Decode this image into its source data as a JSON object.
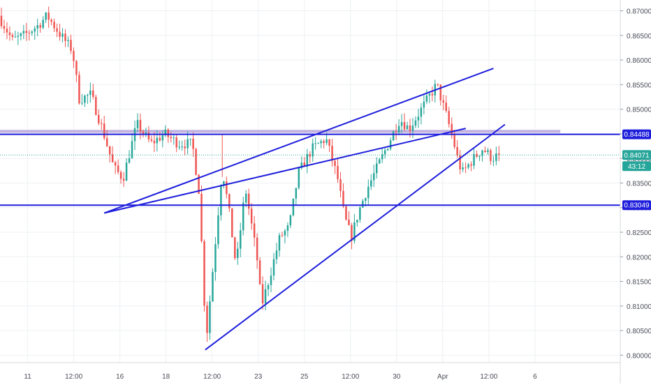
{
  "chart_data": {
    "type": "candlestick",
    "instrument_hint": "",
    "price_axis_ticks": [
      "0.80000",
      "0.80500",
      "0.81000",
      "0.81500",
      "0.82000",
      "0.82500",
      "0.83000",
      "0.83500",
      "0.84000",
      "0.84500",
      "0.85000",
      "0.85500",
      "0.86000",
      "0.86500",
      "0.87000"
    ],
    "ylim": [
      0.7985,
      0.8722
    ],
    "time_axis_ticks": [
      {
        "label": "11",
        "t": 0.6
      },
      {
        "label": "12:00",
        "t": 1.6
      },
      {
        "label": "16",
        "t": 2.6
      },
      {
        "label": "18",
        "t": 3.6
      },
      {
        "label": "12:00",
        "t": 4.6
      },
      {
        "label": "23",
        "t": 5.6
      },
      {
        "label": "25",
        "t": 6.6
      },
      {
        "label": "12:00",
        "t": 7.6
      },
      {
        "label": "30",
        "t": 8.6
      },
      {
        "label": "Apr",
        "t": 9.6
      },
      {
        "label": "12:00",
        "t": 10.6
      },
      {
        "label": "6",
        "t": 11.6
      }
    ],
    "xlim": [
      0,
      13.45
    ],
    "price_badges": {
      "upper_level": "0.84488",
      "current_price": "0.84071",
      "countdown": "43:12",
      "lower_level": "0.83049"
    },
    "horizontal_levels": [
      {
        "name": "upper_level",
        "value": 0.8449,
        "color": "#1e1edc"
      },
      {
        "name": "lower_level",
        "value": 0.8305,
        "color": "#1e1edc"
      },
      {
        "name": "current_price",
        "value": 0.8407,
        "color": "#26a69a",
        "style": "dotted"
      }
    ],
    "zone": {
      "from": 0.8452,
      "to": 0.8458,
      "color": "#b9a6dc"
    },
    "trendlines": [
      {
        "name": "lower-channel-line",
        "points": [
          [
            2.26,
            0.8289
          ],
          [
            10.1,
            0.8461
          ]
        ]
      },
      {
        "name": "upper-channel-line",
        "points": [
          [
            2.26,
            0.8289
          ],
          [
            10.7,
            0.8583
          ]
        ]
      },
      {
        "name": "rising-support-line",
        "points": [
          [
            4.45,
            0.8011
          ],
          [
            10.95,
            0.8469
          ]
        ]
      }
    ],
    "anchor_prices": [
      [
        0.0,
        0.869
      ],
      [
        0.3,
        0.864
      ],
      [
        0.55,
        0.865
      ],
      [
        0.85,
        0.867
      ],
      [
        1.05,
        0.869
      ],
      [
        1.35,
        0.865
      ],
      [
        1.6,
        0.862
      ],
      [
        1.75,
        0.852
      ],
      [
        2.0,
        0.853
      ],
      [
        2.25,
        0.846
      ],
      [
        2.5,
        0.838
      ],
      [
        2.7,
        0.836
      ],
      [
        3.0,
        0.847
      ],
      [
        3.3,
        0.843
      ],
      [
        3.6,
        0.845
      ],
      [
        3.9,
        0.843
      ],
      [
        4.2,
        0.843
      ],
      [
        4.35,
        0.833
      ],
      [
        4.5,
        0.803
      ],
      [
        4.75,
        0.828
      ],
      [
        4.85,
        0.838
      ],
      [
        5.0,
        0.829
      ],
      [
        5.15,
        0.818
      ],
      [
        5.35,
        0.834
      ],
      [
        5.6,
        0.82
      ],
      [
        5.7,
        0.81
      ],
      [
        5.85,
        0.815
      ],
      [
        6.1,
        0.824
      ],
      [
        6.3,
        0.826
      ],
      [
        6.5,
        0.837
      ],
      [
        6.8,
        0.842
      ],
      [
        7.1,
        0.844
      ],
      [
        7.35,
        0.836
      ],
      [
        7.5,
        0.828
      ],
      [
        7.65,
        0.824
      ],
      [
        7.8,
        0.829
      ],
      [
        8.0,
        0.834
      ],
      [
        8.2,
        0.838
      ],
      [
        8.45,
        0.843
      ],
      [
        8.7,
        0.848
      ],
      [
        8.9,
        0.846
      ],
      [
        9.1,
        0.849
      ],
      [
        9.5,
        0.855
      ],
      [
        9.7,
        0.849
      ],
      [
        9.85,
        0.844
      ],
      [
        9.95,
        0.84
      ],
      [
        10.05,
        0.837
      ],
      [
        10.3,
        0.84
      ],
      [
        10.5,
        0.842
      ],
      [
        10.7,
        0.84
      ],
      [
        10.85,
        0.8407
      ]
    ],
    "candle_count": 180,
    "up_color": "#26a69a",
    "down_color": "#ef5350",
    "grid": true
  }
}
